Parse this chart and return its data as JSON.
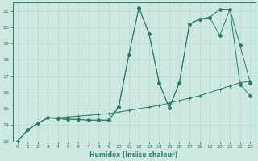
{
  "xlabel": "Humidex (Indice chaleur)",
  "bg_color": "#cce8e0",
  "grid_color": "#b8d8d0",
  "line_color": "#2a7a6a",
  "xlim": [
    -0.5,
    23.5
  ],
  "ylim": [
    13,
    21.5
  ],
  "xticks": [
    0,
    1,
    2,
    3,
    4,
    5,
    6,
    7,
    8,
    9,
    10,
    11,
    12,
    13,
    14,
    15,
    16,
    17,
    18,
    19,
    20,
    21,
    22,
    23
  ],
  "yticks": [
    13,
    14,
    15,
    16,
    17,
    18,
    19,
    20,
    21
  ],
  "line1_x": [
    0,
    1,
    2,
    3,
    4,
    5,
    6,
    7,
    8,
    9,
    10,
    11,
    12,
    13,
    14,
    15,
    16,
    17,
    18,
    19,
    20,
    21,
    22,
    23
  ],
  "line1_y": [
    13.0,
    13.7,
    14.1,
    14.45,
    14.4,
    14.35,
    14.35,
    14.3,
    14.3,
    14.3,
    15.1,
    18.3,
    21.2,
    19.6,
    16.6,
    15.05,
    16.6,
    20.2,
    20.5,
    20.6,
    21.1,
    21.1,
    18.9,
    16.6
  ],
  "line2_x": [
    0,
    1,
    2,
    3,
    4,
    5,
    6,
    7,
    8,
    9,
    10,
    11,
    12,
    13,
    14,
    15,
    16,
    17,
    18,
    19,
    20,
    21,
    22,
    23
  ],
  "line2_y": [
    13.0,
    13.7,
    14.1,
    14.45,
    14.4,
    14.35,
    14.35,
    14.3,
    14.3,
    14.3,
    15.1,
    18.3,
    21.2,
    19.6,
    16.6,
    15.05,
    16.6,
    20.2,
    20.5,
    20.6,
    19.5,
    21.1,
    16.5,
    15.8
  ],
  "line3_x": [
    0,
    1,
    2,
    3,
    4,
    5,
    6,
    7,
    8,
    9,
    10,
    11,
    12,
    13,
    14,
    15,
    16,
    17,
    18,
    19,
    20,
    21,
    22,
    23
  ],
  "line3_y": [
    13.0,
    13.7,
    14.1,
    14.45,
    14.45,
    14.5,
    14.55,
    14.6,
    14.65,
    14.7,
    14.8,
    14.9,
    15.0,
    15.1,
    15.2,
    15.35,
    15.5,
    15.65,
    15.8,
    16.0,
    16.2,
    16.4,
    16.6,
    16.7
  ]
}
